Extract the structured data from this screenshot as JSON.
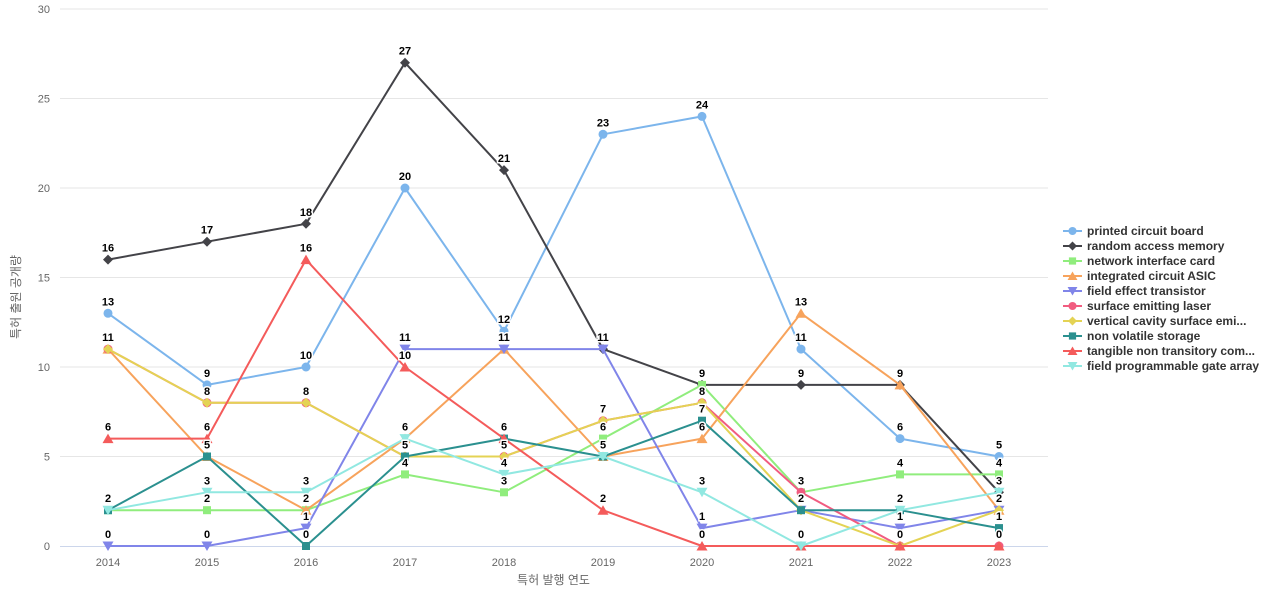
{
  "chart_data": {
    "type": "line",
    "x": [
      "2014",
      "2015",
      "2016",
      "2017",
      "2018",
      "2019",
      "2020",
      "2021",
      "2022",
      "2023"
    ],
    "xlabel": "특허 발행 연도",
    "ylabel": "특허 출원 공개량",
    "ylim": [
      0,
      30
    ],
    "yticks": [
      0,
      5,
      10,
      15,
      20,
      25,
      30
    ],
    "grid": "horizontal",
    "legend_position": "right-middle",
    "data_labels": "bold values above each point, overlapping labels hidden",
    "series": [
      {
        "name": "printed circuit board",
        "color": "#7cb5ec",
        "marker": "circle",
        "values": [
          13,
          9,
          10,
          20,
          12,
          23,
          24,
          11,
          6,
          5
        ]
      },
      {
        "name": "random access memory",
        "color": "#434348",
        "marker": "diamond",
        "values": [
          16,
          17,
          18,
          27,
          21,
          11,
          9,
          9,
          9,
          3
        ]
      },
      {
        "name": "network interface card",
        "color": "#90ed7d",
        "marker": "square",
        "values": [
          2,
          2,
          2,
          4,
          3,
          6,
          9,
          3,
          4,
          4
        ]
      },
      {
        "name": "integrated circuit ASIC",
        "color": "#f7a35c",
        "marker": "triangle",
        "values": [
          11,
          5,
          2,
          6,
          11,
          5,
          6,
          13,
          9,
          2
        ]
      },
      {
        "name": "field effect transistor",
        "color": "#8085e9",
        "marker": "triangle-down",
        "values": [
          0,
          0,
          1,
          11,
          11,
          11,
          1,
          2,
          1,
          2
        ]
      },
      {
        "name": "surface emitting laser",
        "color": "#f15c80",
        "marker": "circle",
        "values": [
          11,
          8,
          8,
          5,
          5,
          7,
          8,
          3,
          0,
          0
        ]
      },
      {
        "name": "vertical cavity surface emi...",
        "color": "#e4d354",
        "marker": "diamond",
        "values": [
          11,
          8,
          8,
          5,
          5,
          7,
          8,
          2,
          0,
          2
        ]
      },
      {
        "name": "non volatile storage",
        "color": "#2b908f",
        "marker": "square",
        "values": [
          2,
          5,
          0,
          5,
          6,
          5,
          7,
          2,
          2,
          1
        ]
      },
      {
        "name": "tangible non transitory com...",
        "color": "#f45b5b",
        "marker": "triangle",
        "values": [
          6,
          6,
          16,
          10,
          6,
          2,
          0,
          0,
          0,
          0
        ]
      },
      {
        "name": "field programmable gate array",
        "color": "#91e8e1",
        "marker": "triangle-down",
        "values": [
          2,
          3,
          3,
          6,
          4,
          5,
          3,
          0,
          2,
          3
        ]
      }
    ]
  },
  "colors": {
    "axis_text": "#666666",
    "legend_text": "#333333",
    "gridline": "#e6e6e6",
    "axis_line": "#ccd6eb",
    "data_label": "#000000",
    "background": "#ffffff"
  }
}
